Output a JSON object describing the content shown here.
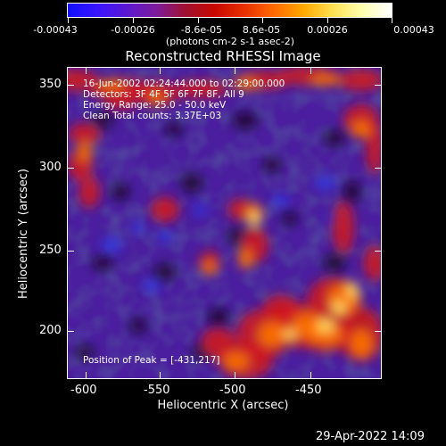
{
  "colorbar": {
    "tick_labels": [
      "-0.00043",
      "-0.00026",
      "-8.6e-05",
      "8.6e-05",
      "0.00026",
      "0.00043"
    ],
    "units": "(photons cm-2 s-1 asec-2)",
    "colors": [
      "#1010ff",
      "#3a14ff",
      "#5a18d0",
      "#7c1c9c",
      "#a01030",
      "#c80800",
      "#e83000",
      "#ff6a00",
      "#ffa800",
      "#ffe050",
      "#ffffb0",
      "#ffffff"
    ]
  },
  "image": {
    "title": "Reconstructed RHESSI Image",
    "annotations": [
      "16-Jun-2002 02:24:44.000 to 02:29:00.000",
      "Detectors: 3F 4F 5F 6F 7F 8F, All 9",
      "Energy Range: 25.0 - 50.0 keV",
      "Clean    Total counts: 3.37E+03"
    ],
    "peak_label": "Position of Peak = [-431,217]",
    "x_axis": {
      "label": "Heliocentric X (arcsec)",
      "ticks": [
        "-600",
        "-550",
        "-500",
        "-450"
      ]
    },
    "y_axis": {
      "label": "Heliocentric Y (arcsec)",
      "ticks": [
        "350",
        "300",
        "250",
        "200"
      ]
    }
  },
  "footer": {
    "timestamp": "29-Apr-2022 14:09"
  }
}
